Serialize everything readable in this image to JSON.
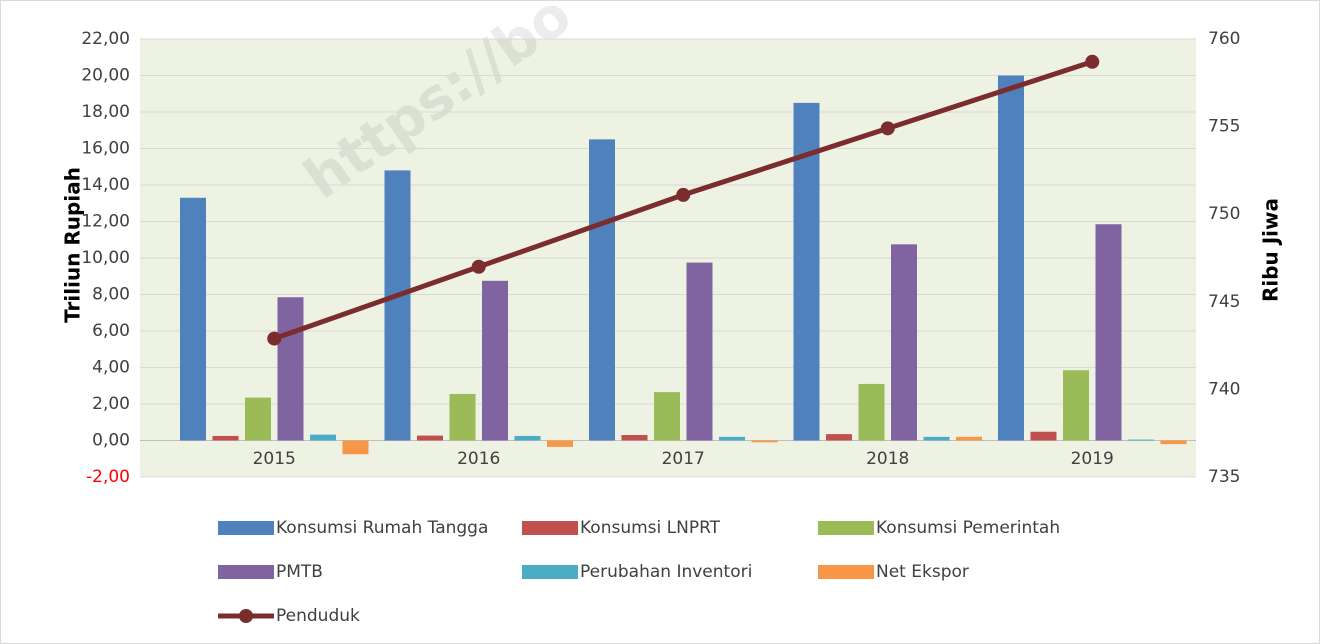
{
  "chart_data": {
    "type": "bar",
    "watermark": "https://bo",
    "y_label": "Triliun Rupiah",
    "y2_label": "Ribu Jiwa",
    "categories": [
      "2015",
      "2016",
      "2017",
      "2018",
      "2019"
    ],
    "series": [
      {
        "name": "Konsumsi Rumah Tangga",
        "color": "#4f81bd",
        "values": [
          13.3,
          14.8,
          16.5,
          18.5,
          20.0
        ]
      },
      {
        "name": "Konsumsi LNPRT",
        "color": "#c0504d",
        "values": [
          0.25,
          0.27,
          0.3,
          0.35,
          0.48
        ]
      },
      {
        "name": "Konsumsi Pemerintah",
        "color": "#9bbb59",
        "values": [
          2.35,
          2.55,
          2.65,
          3.1,
          3.85
        ]
      },
      {
        "name": "PMTB",
        "color": "#8064a2",
        "values": [
          7.85,
          8.75,
          9.75,
          10.75,
          11.85
        ]
      },
      {
        "name": "Perubahan Inventori",
        "color": "#4bacc6",
        "values": [
          0.32,
          0.25,
          0.2,
          0.2,
          0.05
        ]
      },
      {
        "name": "Net Ekspor",
        "color": "#f79646",
        "values": [
          -0.75,
          -0.35,
          -0.1,
          0.2,
          -0.2
        ]
      },
      {
        "name": "Penduduk",
        "color": "#7b2c2c",
        "type": "line",
        "axis": "y2",
        "values": [
          742.9,
          747.0,
          751.1,
          754.9,
          758.7
        ]
      }
    ],
    "ylim": [
      -2,
      22
    ],
    "yticks": [
      {
        "value": -2,
        "label": "-2,00"
      },
      {
        "value": 0,
        "label": "0,00"
      },
      {
        "value": 2,
        "label": "2,00"
      },
      {
        "value": 4,
        "label": "4,00"
      },
      {
        "value": 6,
        "label": "6,00"
      },
      {
        "value": 8,
        "label": "8,00"
      },
      {
        "value": 10,
        "label": "10,00"
      },
      {
        "value": 12,
        "label": "12,00"
      },
      {
        "value": 14,
        "label": "14,00"
      },
      {
        "value": 16,
        "label": "16,00"
      },
      {
        "value": 18,
        "label": "18,00"
      },
      {
        "value": 20,
        "label": "20,00"
      },
      {
        "value": 22,
        "label": "22,00"
      }
    ],
    "y2lim": [
      735,
      760
    ],
    "y2ticks": [
      735,
      740,
      745,
      750,
      755,
      760
    ],
    "grid": true,
    "legend": "bottom"
  }
}
